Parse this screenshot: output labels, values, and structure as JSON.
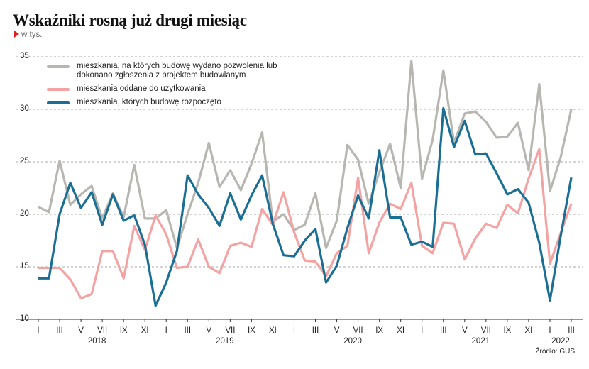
{
  "chart_data": {
    "type": "line",
    "title": "Wskaźniki rosną już drugi miesiąc",
    "subtitle": "w tys.",
    "source": "Źródło: GUS",
    "categories": [
      "I",
      null,
      "III",
      null,
      "V",
      null,
      "VII",
      null,
      "IX",
      null,
      "XI",
      null,
      "I",
      null,
      "III",
      null,
      "V",
      null,
      "VII",
      null,
      "IX",
      null,
      "XI",
      null,
      "I",
      null,
      "III",
      null,
      "V",
      null,
      "VII",
      null,
      "IX",
      null,
      "XI",
      null,
      "I",
      null,
      "III",
      null,
      "V",
      null,
      "VII",
      null,
      "IX",
      null,
      "XI",
      null,
      "I",
      null,
      "III"
    ],
    "years": [
      "2018",
      "2019",
      "2020",
      "2021",
      "2022"
    ],
    "ylim": [
      10,
      35
    ],
    "yticks": [
      10,
      15,
      20,
      25,
      30,
      35
    ],
    "grid": true,
    "series": [
      {
        "name": "mieszkania, na których budowę wydano pozwolenia lub dokonano zgłoszenia z projektem budowlanym",
        "color": "#b8b6b1",
        "values": [
          20.7,
          20.2,
          25.1,
          20.9,
          21.9,
          22.7,
          19.6,
          22.0,
          19.7,
          24.7,
          19.6,
          19.6,
          20.4,
          16.8,
          20.0,
          23.0,
          26.8,
          22.6,
          24.2,
          22.3,
          24.8,
          27.8,
          19.3,
          20.0,
          18.5,
          19.0,
          22.0,
          16.8,
          19.4,
          26.6,
          25.2,
          21.0,
          24.0,
          26.7,
          22.5,
          34.6,
          23.4,
          27.1,
          33.7,
          26.8,
          29.6,
          29.8,
          28.8,
          27.3,
          27.4,
          28.7,
          24.2,
          32.4,
          22.2,
          25.4,
          30.0
        ]
      },
      {
        "name": "mieszkania oddane do użytkowania",
        "color": "#f4a3a3",
        "values": [
          14.9,
          14.9,
          14.9,
          13.8,
          12.0,
          12.4,
          16.5,
          16.5,
          13.9,
          18.9,
          16.6,
          19.9,
          18.1,
          14.9,
          15.0,
          17.6,
          15.0,
          14.4,
          17.0,
          17.3,
          16.9,
          20.5,
          19.0,
          22.1,
          18.3,
          15.6,
          15.5,
          14.1,
          16.3,
          17.0,
          23.5,
          16.3,
          19.2,
          21.0,
          20.5,
          23.0,
          17.0,
          16.3,
          19.2,
          19.1,
          15.7,
          17.7,
          19.1,
          18.7,
          20.9,
          20.1,
          23.4,
          26.2,
          15.3,
          18.2,
          21.0
        ]
      },
      {
        "name": "mieszkania, których budowę rozpoczęto",
        "color": "#1b6f94",
        "values": [
          13.9,
          13.9,
          20.0,
          23.0,
          20.6,
          22.1,
          19.0,
          21.9,
          19.4,
          19.9,
          17.1,
          11.3,
          13.5,
          16.5,
          23.7,
          21.9,
          20.6,
          18.9,
          22.0,
          19.5,
          21.8,
          23.7,
          19.1,
          16.1,
          16.0,
          17.5,
          18.6,
          13.5,
          15.1,
          18.7,
          21.8,
          19.6,
          26.1,
          19.7,
          19.7,
          17.1,
          17.4,
          16.9,
          30.1,
          26.4,
          28.9,
          25.7,
          25.8,
          23.9,
          21.9,
          22.4,
          21.1,
          17.3,
          11.8,
          17.9,
          23.5
        ]
      }
    ]
  }
}
